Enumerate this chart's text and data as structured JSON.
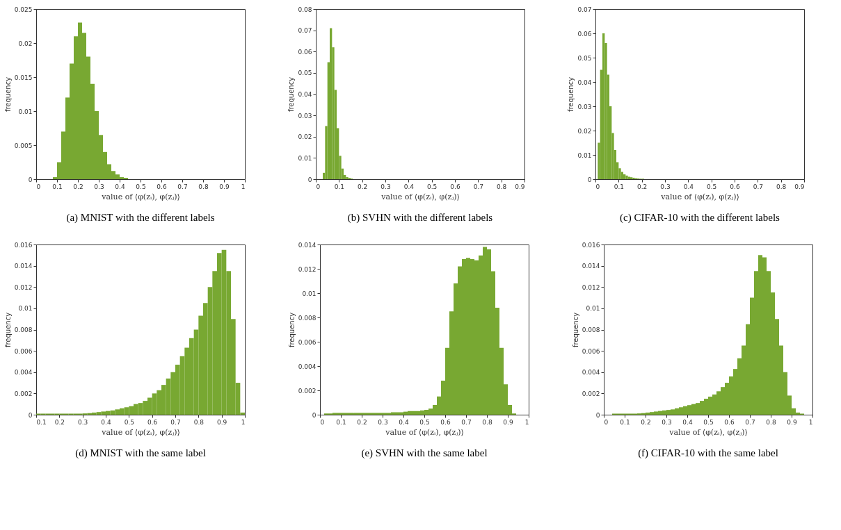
{
  "chart_data": [
    {
      "type": "histogram",
      "title": "(a)  MNIST with the different labels",
      "xlabel": "value of ⟨φ(zᵢ), φ(zⱼ)⟩",
      "ylabel": "frequency",
      "color": "#78a832",
      "grid": false,
      "bins": [
        0.08,
        0.1,
        0.12,
        0.14,
        0.16,
        0.18,
        0.2,
        0.22,
        0.24,
        0.26,
        0.28,
        0.3,
        0.32,
        0.34,
        0.36,
        0.38,
        0.4,
        0.42,
        0.44
      ],
      "values": [
        0.0003,
        0.0025,
        0.007,
        0.012,
        0.017,
        0.021,
        0.023,
        0.0215,
        0.018,
        0.014,
        0.01,
        0.0065,
        0.004,
        0.0022,
        0.0012,
        0.0007,
        0.0003,
        0.0002
      ],
      "xlim": [
        0,
        1
      ],
      "xticks": [
        0,
        0.1,
        0.2,
        0.3,
        0.4,
        0.5,
        0.6,
        0.7,
        0.8,
        0.9,
        1
      ],
      "ylim": [
        0,
        0.025
      ],
      "yticks": [
        0,
        0.005,
        0.01,
        0.015,
        0.02,
        0.025
      ]
    },
    {
      "type": "histogram",
      "title": "(b)  SVHN with the different labels",
      "xlabel": "value of ⟨φ(zᵢ), φ(zⱼ)⟩",
      "ylabel": "frequency",
      "color": "#78a832",
      "grid": false,
      "bins": [
        0.03,
        0.04,
        0.05,
        0.06,
        0.07,
        0.08,
        0.09,
        0.1,
        0.11,
        0.12,
        0.13,
        0.14,
        0.15,
        0.16
      ],
      "values": [
        0.003,
        0.025,
        0.055,
        0.071,
        0.062,
        0.042,
        0.024,
        0.011,
        0.005,
        0.002,
        0.001,
        0.0006,
        0.0003
      ],
      "xlim": [
        0,
        0.9
      ],
      "xticks": [
        0,
        0.1,
        0.2,
        0.3,
        0.4,
        0.5,
        0.6,
        0.7,
        0.8,
        0.9
      ],
      "ylim": [
        0,
        0.08
      ],
      "yticks": [
        0,
        0.01,
        0.02,
        0.03,
        0.04,
        0.05,
        0.06,
        0.07,
        0.08
      ]
    },
    {
      "type": "histogram",
      "title": "(c)  CIFAR-10 with the different labels",
      "xlabel": "value of ⟨φ(zᵢ), φ(zⱼ)⟩",
      "ylabel": "frequency",
      "color": "#78a832",
      "grid": false,
      "bins": [
        0.01,
        0.02,
        0.03,
        0.04,
        0.05,
        0.06,
        0.07,
        0.08,
        0.09,
        0.1,
        0.11,
        0.12,
        0.13,
        0.14,
        0.15,
        0.16,
        0.17,
        0.18,
        0.19,
        0.2,
        0.21
      ],
      "values": [
        0.015,
        0.045,
        0.06,
        0.056,
        0.043,
        0.03,
        0.019,
        0.012,
        0.007,
        0.0045,
        0.003,
        0.002,
        0.0015,
        0.001,
        0.0008,
        0.0006,
        0.0004,
        0.0003,
        0.0002,
        0.0002
      ],
      "xlim": [
        0,
        0.9
      ],
      "xticks": [
        0,
        0.1,
        0.2,
        0.3,
        0.4,
        0.5,
        0.6,
        0.7,
        0.8,
        0.9
      ],
      "ylim": [
        0,
        0.07
      ],
      "yticks": [
        0,
        0.01,
        0.02,
        0.03,
        0.04,
        0.05,
        0.06,
        0.07
      ]
    },
    {
      "type": "histogram",
      "title": "(d)  MNIST with the same label",
      "xlabel": "value of ⟨φ(zᵢ), φ(zⱼ)⟩",
      "ylabel": "frequency",
      "color": "#78a832",
      "grid": false,
      "bins": [
        0.1,
        0.12,
        0.14,
        0.16,
        0.18,
        0.2,
        0.22,
        0.24,
        0.26,
        0.28,
        0.3,
        0.32,
        0.34,
        0.36,
        0.38,
        0.4,
        0.42,
        0.44,
        0.46,
        0.48,
        0.5,
        0.52,
        0.54,
        0.56,
        0.58,
        0.6,
        0.62,
        0.64,
        0.66,
        0.68,
        0.7,
        0.72,
        0.74,
        0.76,
        0.78,
        0.8,
        0.82,
        0.84,
        0.86,
        0.88,
        0.9,
        0.92,
        0.94,
        0.96,
        0.98,
        1.0
      ],
      "values": [
        0.0001,
        0.0001,
        0.0001,
        0.0001,
        0.0001,
        0.0001,
        0.0001,
        0.0001,
        0.0001,
        0.0001,
        0.00012,
        0.00015,
        0.0002,
        0.00025,
        0.0003,
        0.00035,
        0.0004,
        0.0005,
        0.0006,
        0.0007,
        0.0008,
        0.001,
        0.0011,
        0.0013,
        0.0016,
        0.002,
        0.0023,
        0.0028,
        0.0034,
        0.004,
        0.0047,
        0.0055,
        0.0063,
        0.0072,
        0.008,
        0.0093,
        0.0105,
        0.012,
        0.0135,
        0.0152,
        0.0155,
        0.0135,
        0.009,
        0.003,
        0.0002
      ],
      "xlim": [
        0.1,
        1
      ],
      "xticks": [
        0.1,
        0.2,
        0.3,
        0.4,
        0.5,
        0.6,
        0.7,
        0.8,
        0.9,
        1
      ],
      "ylim": [
        0,
        0.016
      ],
      "yticks": [
        0,
        0.002,
        0.004,
        0.006,
        0.008,
        0.01,
        0.012,
        0.014,
        0.016
      ]
    },
    {
      "type": "histogram",
      "title": "(e)  SVHN with the same label",
      "xlabel": "value of ⟨φ(zᵢ), φ(zⱼ)⟩",
      "ylabel": "frequency",
      "color": "#78a832",
      "grid": false,
      "bins": [
        0.02,
        0.04,
        0.06,
        0.08,
        0.1,
        0.12,
        0.14,
        0.16,
        0.18,
        0.2,
        0.22,
        0.24,
        0.26,
        0.28,
        0.3,
        0.32,
        0.34,
        0.36,
        0.38,
        0.4,
        0.42,
        0.44,
        0.46,
        0.48,
        0.5,
        0.52,
        0.54,
        0.56,
        0.58,
        0.6,
        0.62,
        0.64,
        0.66,
        0.68,
        0.7,
        0.72,
        0.74,
        0.76,
        0.78,
        0.8,
        0.82,
        0.84,
        0.86,
        0.88,
        0.9,
        0.92,
        0.94
      ],
      "values": [
        0.0001,
        0.0001,
        0.00015,
        0.00015,
        0.00015,
        0.00015,
        0.00015,
        0.00015,
        0.00015,
        0.00015,
        0.00015,
        0.00015,
        0.00015,
        0.00015,
        0.00015,
        0.00015,
        0.0002,
        0.0002,
        0.0002,
        0.00025,
        0.0003,
        0.0003,
        0.0003,
        0.00035,
        0.0004,
        0.0005,
        0.0008,
        0.0015,
        0.0028,
        0.0055,
        0.0085,
        0.0108,
        0.0122,
        0.0128,
        0.0129,
        0.0128,
        0.0127,
        0.0131,
        0.0138,
        0.0136,
        0.0118,
        0.0088,
        0.0055,
        0.0025,
        0.0008,
        0.0001
      ],
      "xlim": [
        0,
        1
      ],
      "xticks": [
        0,
        0.1,
        0.2,
        0.3,
        0.4,
        0.5,
        0.6,
        0.7,
        0.8,
        0.9,
        1
      ],
      "ylim": [
        0,
        0.014
      ],
      "yticks": [
        0,
        0.002,
        0.004,
        0.006,
        0.008,
        0.01,
        0.012,
        0.014
      ]
    },
    {
      "type": "histogram",
      "title": "(f)  CIFAR-10 with the same label",
      "xlabel": "value of ⟨φ(zᵢ), φ(zⱼ)⟩",
      "ylabel": "frequency",
      "color": "#78a832",
      "grid": false,
      "bins": [
        0.04,
        0.06,
        0.08,
        0.1,
        0.12,
        0.14,
        0.16,
        0.18,
        0.2,
        0.22,
        0.24,
        0.26,
        0.28,
        0.3,
        0.32,
        0.34,
        0.36,
        0.38,
        0.4,
        0.42,
        0.44,
        0.46,
        0.48,
        0.5,
        0.52,
        0.54,
        0.56,
        0.58,
        0.6,
        0.62,
        0.64,
        0.66,
        0.68,
        0.7,
        0.72,
        0.74,
        0.76,
        0.78,
        0.8,
        0.82,
        0.84,
        0.86,
        0.88,
        0.9,
        0.92,
        0.94,
        0.96
      ],
      "values": [
        0.0001,
        0.0001,
        0.0001,
        0.0001,
        0.0001,
        0.0001,
        0.00012,
        0.00015,
        0.0002,
        0.00025,
        0.0003,
        0.00035,
        0.0004,
        0.00045,
        0.0005,
        0.0006,
        0.0007,
        0.0008,
        0.0009,
        0.001,
        0.0011,
        0.0013,
        0.0015,
        0.0017,
        0.0019,
        0.0022,
        0.0026,
        0.003,
        0.0036,
        0.0043,
        0.0053,
        0.0065,
        0.0085,
        0.011,
        0.0135,
        0.015,
        0.0148,
        0.0135,
        0.0115,
        0.009,
        0.0065,
        0.004,
        0.0018,
        0.0006,
        0.0002,
        0.0001
      ],
      "xlim": [
        0,
        1
      ],
      "xticks": [
        0,
        0.1,
        0.2,
        0.3,
        0.4,
        0.5,
        0.6,
        0.7,
        0.8,
        0.9,
        1
      ],
      "ylim": [
        0,
        0.016
      ],
      "yticks": [
        0,
        0.002,
        0.004,
        0.006,
        0.008,
        0.01,
        0.012,
        0.014,
        0.016
      ]
    }
  ]
}
